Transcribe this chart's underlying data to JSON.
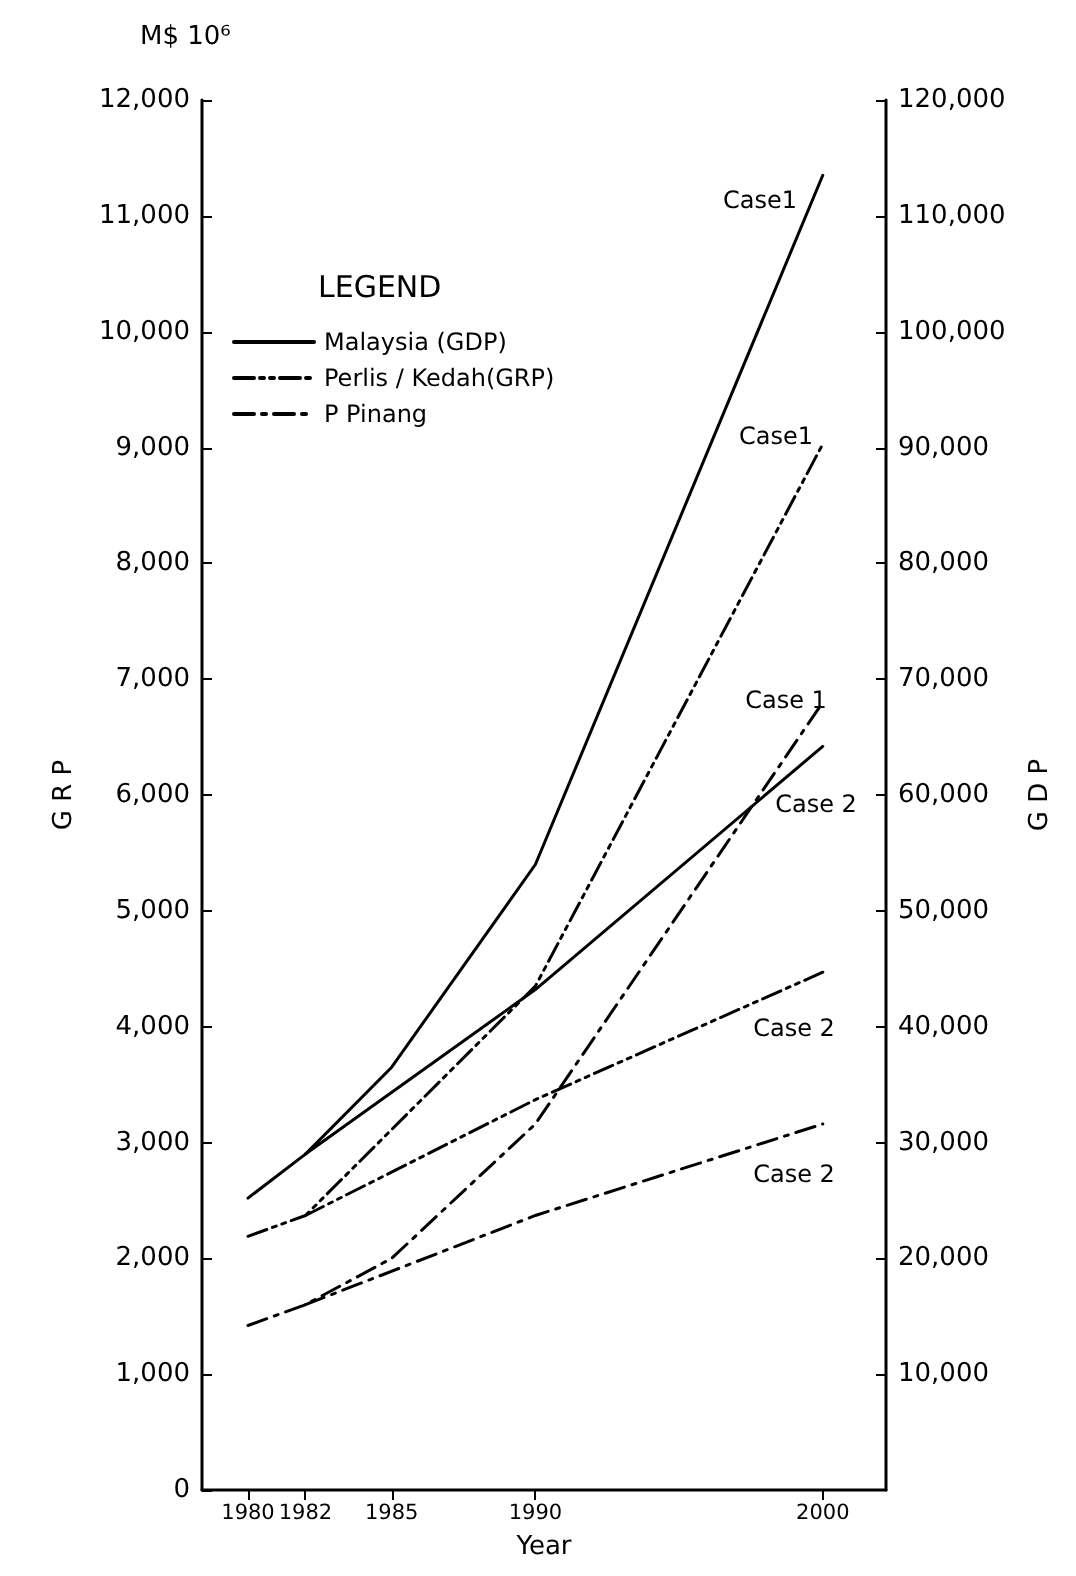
{
  "chart_data": {
    "type": "line",
    "ylabel": "G R P",
    "y2label": "G D P",
    "xlabel": "Year",
    "legend_title": "LEGEND",
    "annotations": [
      "M$ 10⁶",
      "Case1",
      "Case1",
      "Case 1",
      "Case 2",
      "Case 2",
      "Case 2"
    ],
    "series": [
      {
        "name": "Malaysia (GDP)",
        "color": "#000000",
        "axis": "y2",
        "line_style": "solid",
        "x": [
          1980,
          1982,
          1985,
          1990,
          2000
        ],
        "values": [
          25200,
          29000,
          36500,
          54000,
          113500
        ]
      },
      {
        "color": "#000000",
        "axis": "y2",
        "line_style": "solid",
        "x": [
          1982,
          1990,
          2000
        ],
        "values": [
          29000,
          43200,
          64200
        ]
      },
      {
        "name": "Perlis / Kedah(GRP)",
        "color": "#000000",
        "line_style": "dashdotdot",
        "x": [
          1980,
          1982,
          1990,
          2000
        ],
        "values": [
          2190,
          2370,
          4350,
          9030
        ]
      },
      {
        "color": "#000000",
        "line_style": "dashdotdot",
        "x": [
          1982,
          1990,
          2000
        ],
        "values": [
          2370,
          3370,
          4470
        ]
      },
      {
        "name": "P Pinang",
        "color": "#000000",
        "line_style": "dashdot",
        "x": [
          1980,
          1982,
          1985,
          1990,
          2000
        ],
        "values": [
          1420,
          1600,
          2000,
          3160,
          6800
        ]
      },
      {
        "color": "#000000",
        "line_style": "dashdot",
        "x": [
          1982,
          1990,
          2000
        ],
        "values": [
          1600,
          2370,
          3160
        ]
      }
    ],
    "xlim": [
      1978.4,
      2002.2
    ],
    "xticks": [
      1980,
      1982,
      1985,
      1990,
      2000
    ],
    "ylim": [
      0,
      12000
    ],
    "yticks": [
      0,
      {
        "value": 1000,
        "label": "1,000"
      },
      {
        "value": 2000,
        "label": "2,000"
      },
      {
        "value": 3000,
        "label": "3,000"
      },
      {
        "value": 4000,
        "label": "4,000"
      },
      {
        "value": 5000,
        "label": "5,000"
      },
      {
        "value": 6000,
        "label": "6,000"
      },
      {
        "value": 7000,
        "label": "7,000"
      },
      {
        "value": 8000,
        "label": "8,000"
      },
      {
        "value": 9000,
        "label": "9,000"
      },
      {
        "value": 10000,
        "label": "10,000"
      },
      {
        "value": 11000,
        "label": "11,000"
      },
      {
        "value": 12000,
        "label": "12,000"
      }
    ],
    "y2lim": [
      0,
      120000
    ],
    "y2ticks": [
      {
        "value": 10000,
        "label": "10,000"
      },
      {
        "value": 20000,
        "label": "20,000"
      },
      {
        "value": 30000,
        "label": "30,000"
      },
      {
        "value": 40000,
        "label": "40,000"
      },
      {
        "value": 50000,
        "label": "50,000"
      },
      {
        "value": 60000,
        "label": "60,000"
      },
      {
        "value": 70000,
        "label": "70,000"
      },
      {
        "value": 80000,
        "label": "80,000"
      },
      {
        "value": 90000,
        "label": "90,000"
      },
      {
        "value": 100000,
        "label": "100,000"
      },
      {
        "value": 110000,
        "label": "110,000"
      },
      {
        "value": 120000,
        "label": "120,000"
      }
    ],
    "grid": false,
    "legend": "top left",
    "marker": "none"
  }
}
